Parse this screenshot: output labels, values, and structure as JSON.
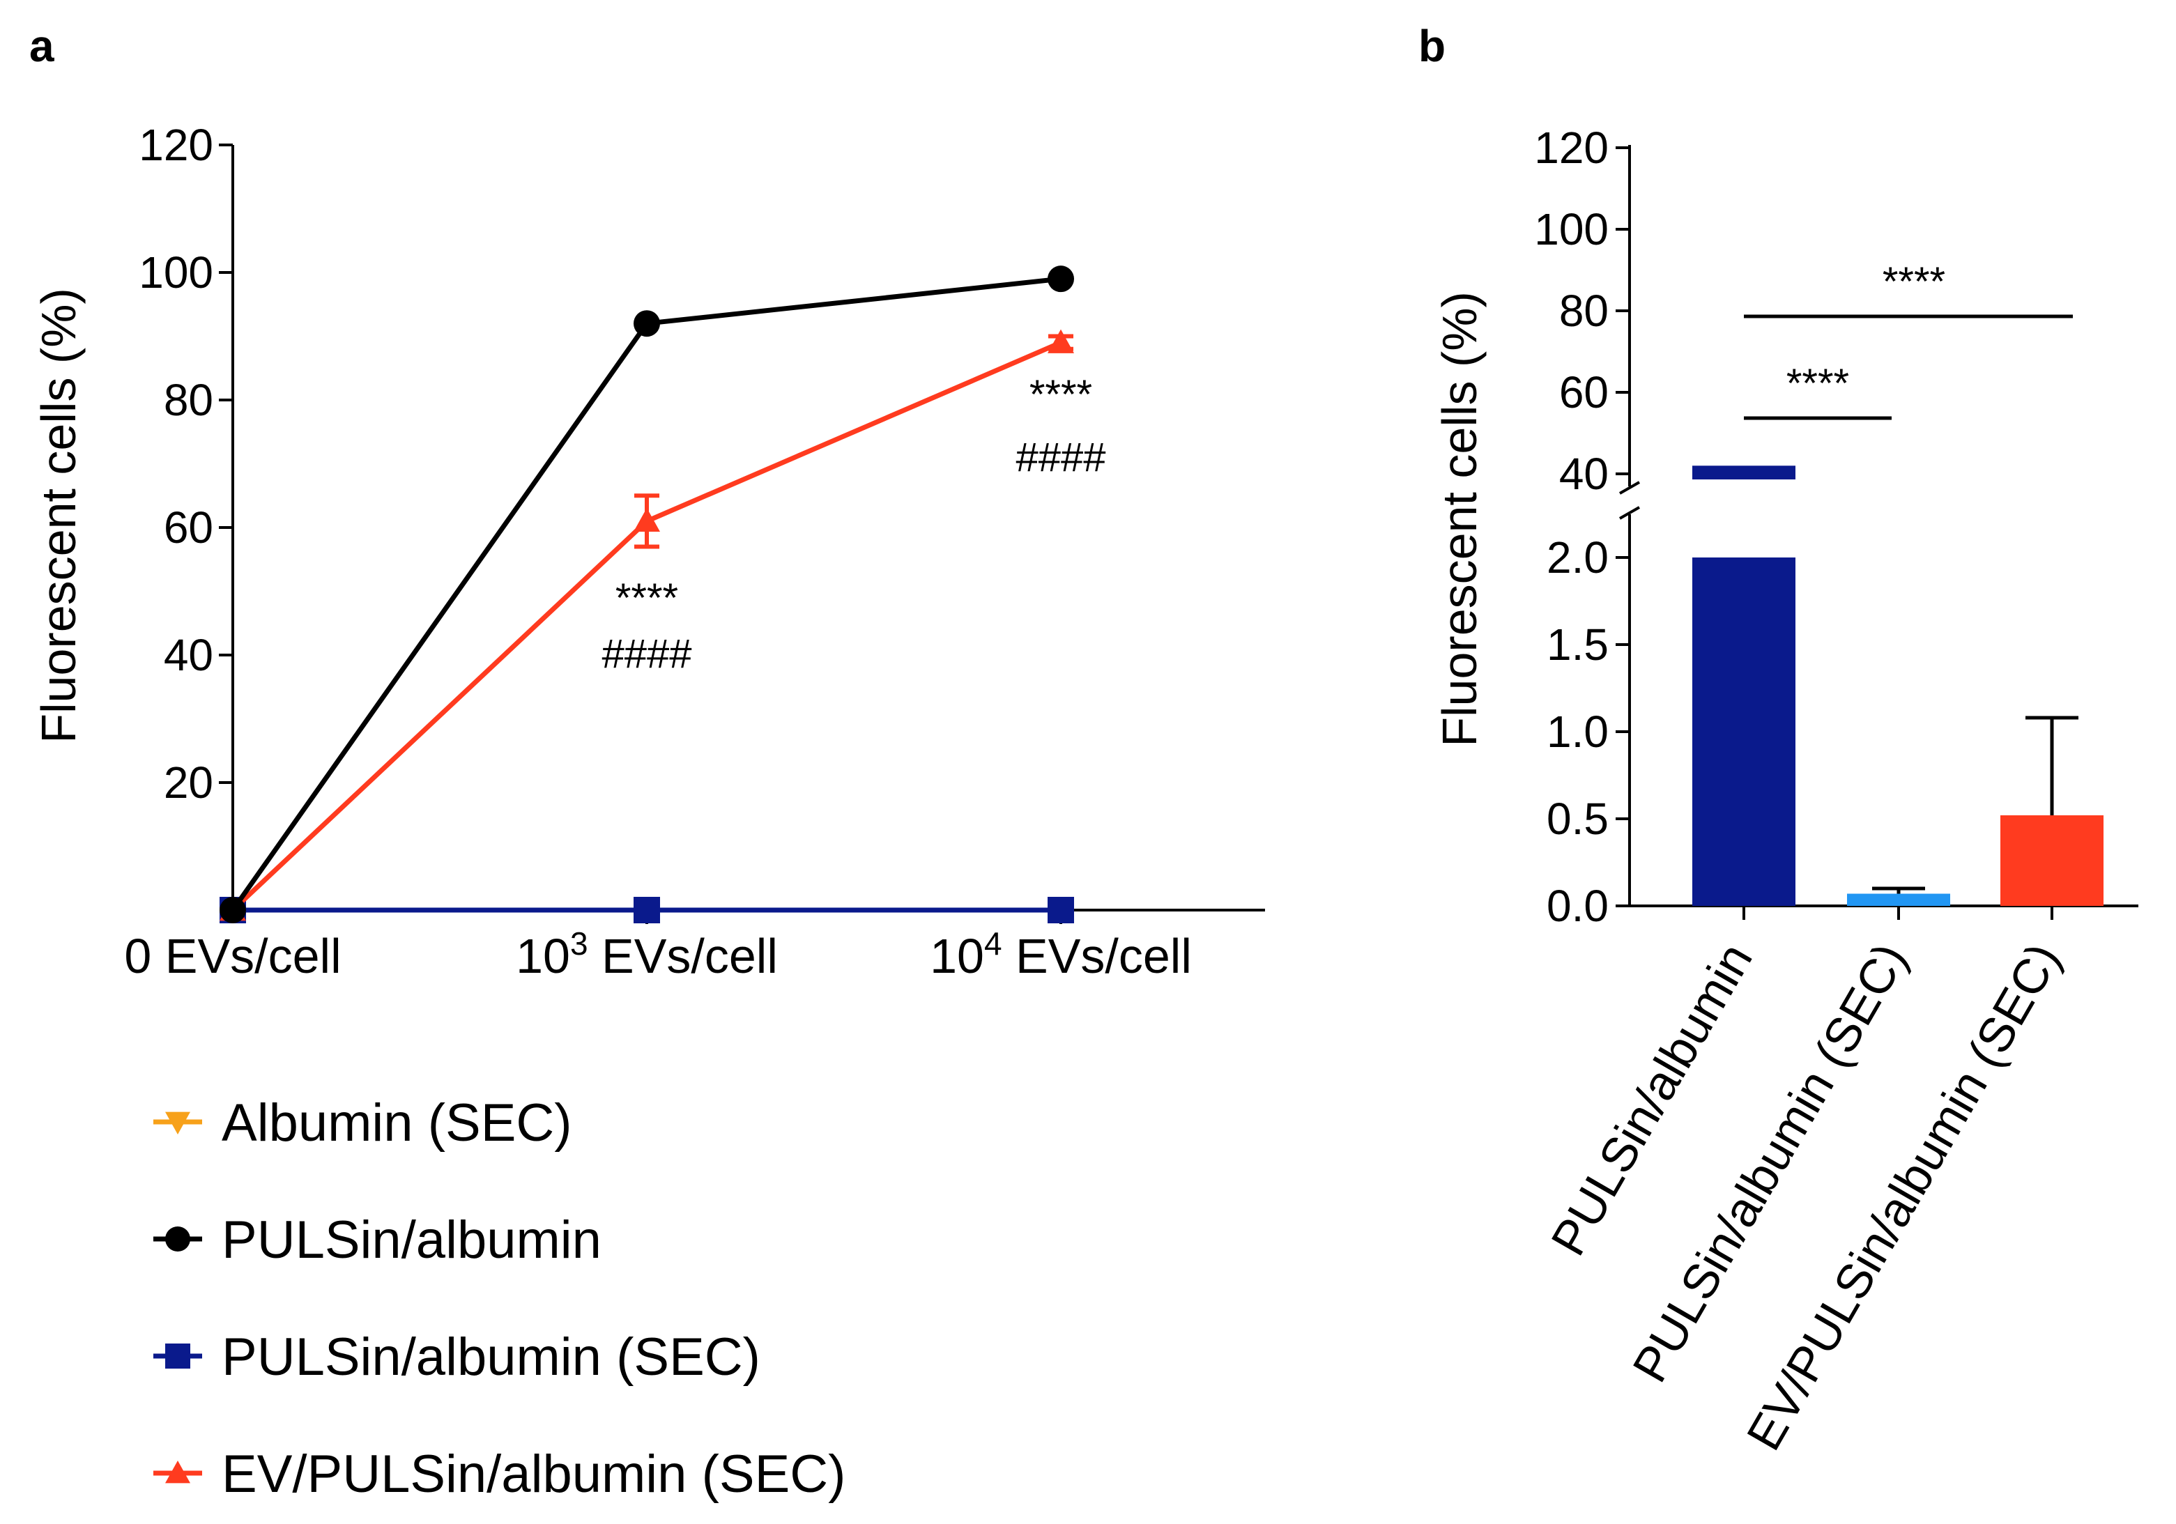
{
  "chart_data": [
    {
      "panel": "a",
      "type": "line",
      "ylabel": "Fluorescent cells (%)",
      "ylim": [
        0,
        120
      ],
      "yticks": [
        "20",
        "40",
        "60",
        "80",
        "100",
        "120"
      ],
      "categories": [
        {
          "base": "0 EVs/cell",
          "exp": ""
        },
        {
          "base": "10",
          "exp": "3",
          "rest": " EVs/cell"
        },
        {
          "base": "10",
          "exp": "4",
          "rest": " EVs/cell"
        }
      ],
      "series": [
        {
          "name": "PULSin/albumin",
          "color": "#000000",
          "marker": "circle",
          "values": [
            0,
            92,
            99
          ]
        },
        {
          "name": "EV/PULSin/albumin (SEC)",
          "color": "#ff3b1f",
          "marker": "triangle-up",
          "values": [
            0,
            61,
            89
          ],
          "errors": [
            0,
            4,
            1
          ]
        },
        {
          "name": "PULSin/albumin (SEC)",
          "color": "#0a1a8c",
          "marker": "square",
          "values": [
            0,
            0,
            0
          ]
        },
        {
          "name": "Albumin (SEC)",
          "color": "#f7a11a",
          "marker": "triangle-down",
          "values": [
            0,
            0,
            0
          ]
        }
      ],
      "legend_order": [
        "Albumin (SEC)",
        "PULSin/albumin",
        "PULSin/albumin (SEC)",
        "EV/PULSin/albumin (SEC)"
      ],
      "annotations": [
        {
          "category": 1,
          "stars": "****",
          "hashes": "####"
        },
        {
          "category": 2,
          "stars": "****",
          "hashes": "####"
        }
      ]
    },
    {
      "panel": "b",
      "type": "bar",
      "ylabel": "Fluorescent cells (%)",
      "axis_break": {
        "lower": [
          0,
          2.0
        ],
        "upper": [
          40,
          120
        ]
      },
      "yticks_lower": [
        "0.0",
        "0.5",
        "1.0",
        "1.5",
        "2.0"
      ],
      "yticks_upper": [
        "40",
        "60",
        "80",
        "100",
        "120"
      ],
      "categories": [
        "PULSin/albumin",
        "PULSin/albumin (SEC)",
        "EV/PULSin/albumin (SEC)"
      ],
      "values": [
        42,
        0.07,
        0.52
      ],
      "errors": [
        0,
        0.03,
        0.56
      ],
      "colors": [
        "#0a1a8c",
        "#2196f3",
        "#ff3b1f"
      ],
      "significance": [
        {
          "from": 0,
          "to": 1,
          "label": "****"
        },
        {
          "from": 0,
          "to": 2,
          "label": "****"
        }
      ]
    }
  ]
}
